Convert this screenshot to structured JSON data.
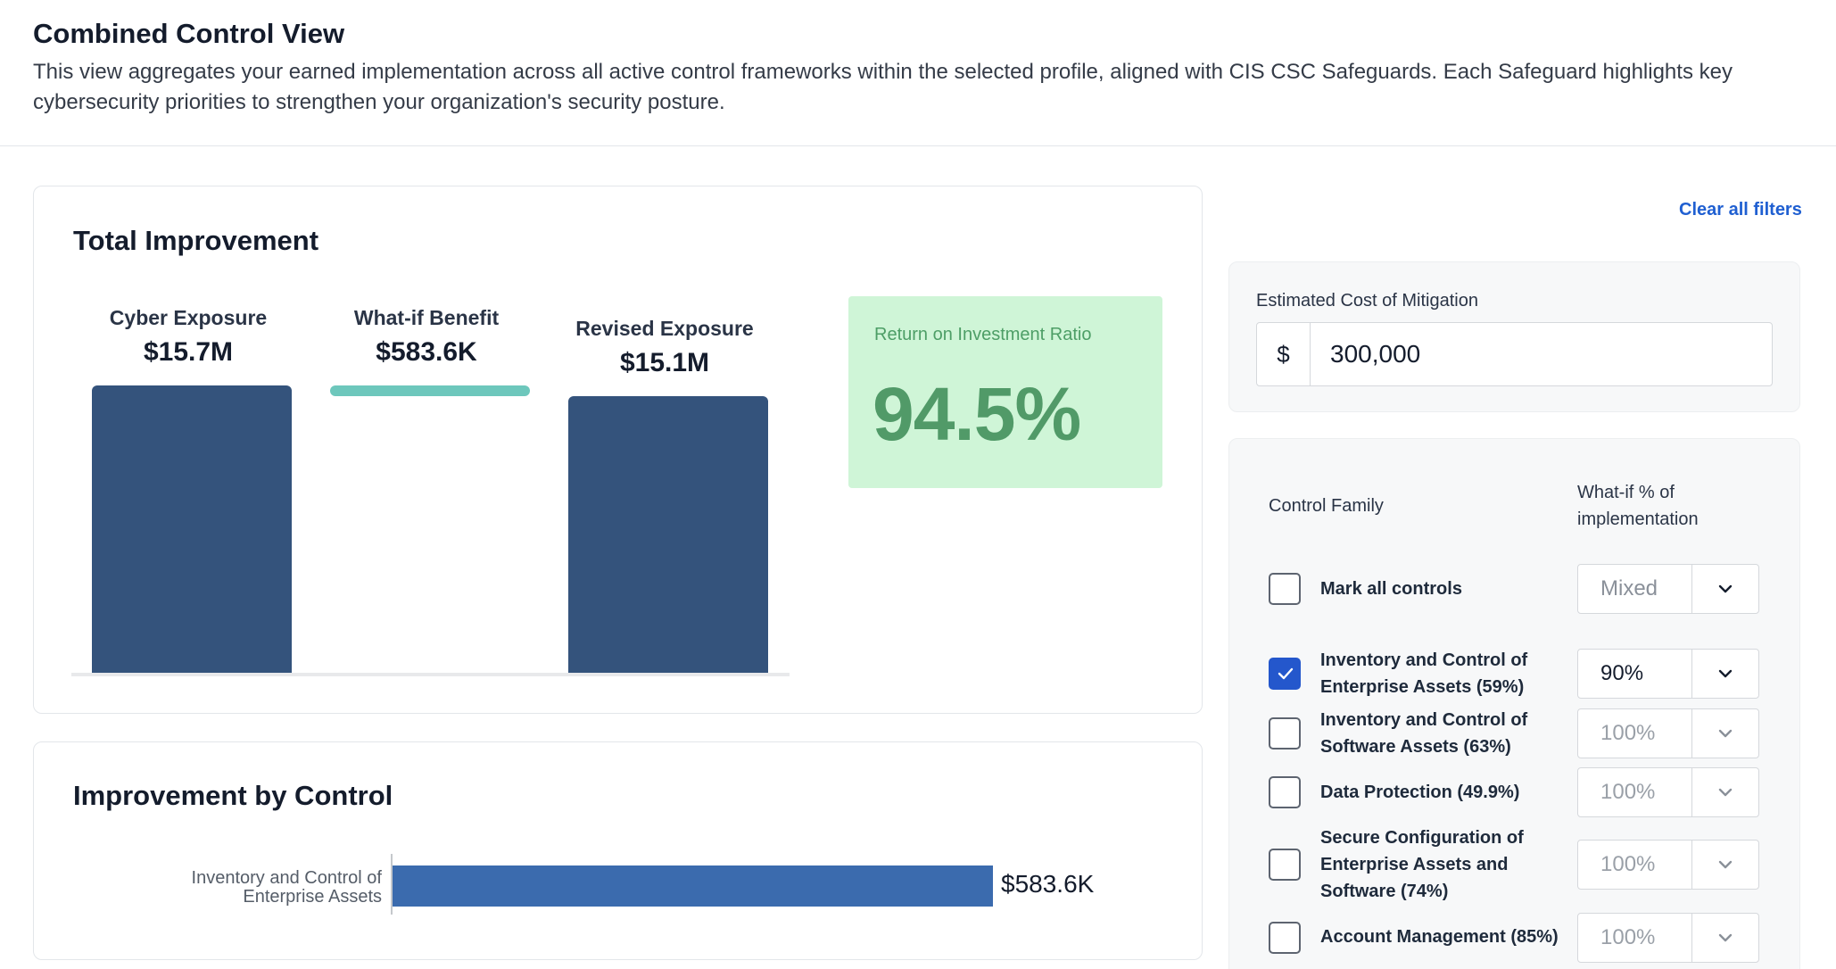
{
  "header": {
    "title": "Combined Control View",
    "description": "This view aggregates your earned implementation across all active control frameworks within the selected profile, aligned with CIS CSC Safeguards. Each Safeguard highlights key cybersecurity priorities to strengthen your organization's security posture."
  },
  "total_improvement": {
    "title": "Total Improvement",
    "cyber_exposure": {
      "label": "Cyber Exposure",
      "value": "$15.7M"
    },
    "what_if_benefit": {
      "label": "What-if Benefit",
      "value": "$583.6K"
    },
    "revised_exposure": {
      "label": "Revised Exposure",
      "value": "$15.1M"
    },
    "roi": {
      "label": "Return on Investment Ratio",
      "value": "94.5%"
    }
  },
  "improvement_by_control": {
    "title": "Improvement by Control",
    "items": [
      {
        "label_line1": "Inventory and Control of",
        "label_line2": "Enterprise Assets",
        "value_label": "$583.6K",
        "value": 583.6
      }
    ]
  },
  "chart_data": [
    {
      "type": "bar",
      "categories": [
        "Cyber Exposure",
        "What-if Benefit",
        "Revised Exposure"
      ],
      "values": [
        15.7,
        0.5836,
        15.1
      ],
      "value_labels": [
        "$15.7M",
        "$583.6K",
        "$15.1M"
      ],
      "ylim": [
        0,
        15.7
      ]
    },
    {
      "type": "bar",
      "orientation": "horizontal",
      "categories": [
        "Inventory and Control of Enterprise Assets"
      ],
      "values": [
        583.6
      ],
      "value_labels": [
        "$583.6K"
      ]
    }
  ],
  "filters": {
    "clear_label": "Clear all filters",
    "cost": {
      "label": "Estimated Cost of Mitigation",
      "prefix": "$",
      "value": "300,000"
    },
    "table": {
      "col_family": "Control Family",
      "col_whatif_line1": "What-if % of",
      "col_whatif_line2": "implementation",
      "mark_all": {
        "label": "Mark all controls",
        "checked": false,
        "select": "Mixed"
      },
      "rows": [
        {
          "lines": [
            "Inventory and Control of",
            "Enterprise Assets (59%)"
          ],
          "checked": true,
          "select": "90%"
        },
        {
          "lines": [
            "Inventory and Control of",
            "Software Assets (63%)"
          ],
          "checked": false,
          "select": "100%"
        },
        {
          "lines": [
            "Data Protection (49.9%)"
          ],
          "checked": false,
          "select": "100%"
        },
        {
          "lines": [
            "Secure Configuration of",
            "Enterprise Assets and",
            "Software (74%)"
          ],
          "checked": false,
          "select": "100%"
        },
        {
          "lines": [
            "Account Management (85%)"
          ],
          "checked": false,
          "select": "100%"
        }
      ]
    }
  },
  "colors": {
    "bar": "#34537c",
    "benefit": "#6dc7bc",
    "roi_bg": "#cff5d7",
    "roi_text": "#519a68",
    "hbar": "#3b6bae",
    "accent": "#2457cc",
    "link": "#1f5fd1"
  }
}
